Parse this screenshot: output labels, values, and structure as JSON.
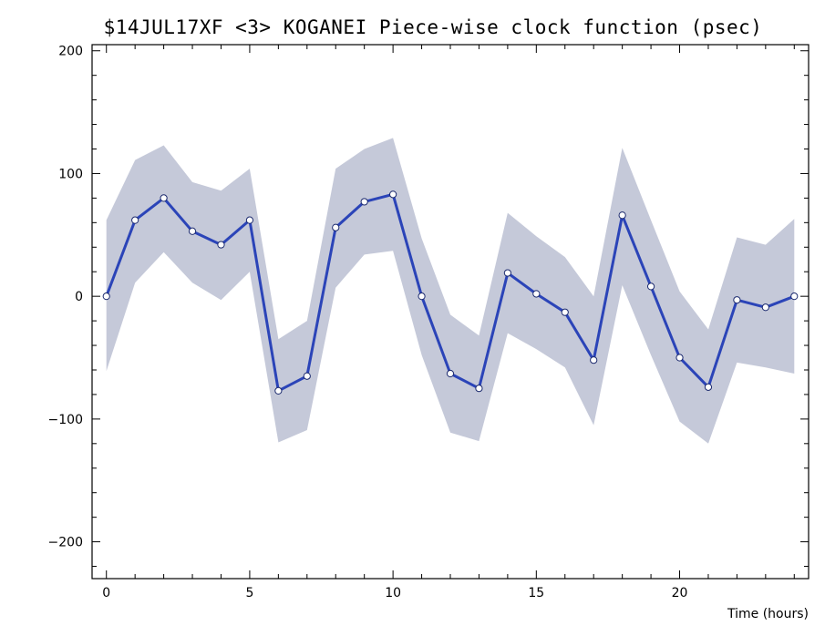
{
  "chart_data": {
    "type": "line",
    "title": "$14JUL17XF <3>  KOGANEI   Piece-wise clock function (psec)",
    "xlabel": "Time (hours)",
    "ylabel": "",
    "xlim": [
      -0.5,
      24.5
    ],
    "ylim": [
      -230,
      205
    ],
    "x_ticks": [
      0,
      5,
      10,
      15,
      20
    ],
    "y_ticks": [
      200,
      100,
      0,
      -100,
      -200
    ],
    "grid": false,
    "colors": {
      "line": "#2b44b8",
      "band": "#c5c9d9",
      "marker_fill": "#ffffff",
      "axis": "#000000"
    },
    "x": [
      0,
      1,
      2,
      3,
      4,
      5,
      6,
      7,
      8,
      9,
      10,
      11,
      12,
      13,
      14,
      15,
      16,
      17,
      18,
      19,
      20,
      21,
      22,
      23,
      24
    ],
    "series": [
      {
        "values": [
          0,
          62,
          80,
          53,
          42,
          62,
          -77,
          -65,
          56,
          77,
          83,
          0,
          -63,
          -75,
          19,
          2,
          -13,
          -52,
          66,
          8,
          -50,
          -74,
          -3,
          -9,
          0
        ]
      }
    ],
    "band_upper": [
      62,
      111,
      123,
      93,
      86,
      104,
      -35,
      -20,
      104,
      120,
      129,
      47,
      -15,
      -32,
      68,
      49,
      32,
      0,
      121,
      62,
      4,
      -27,
      48,
      42,
      63
    ],
    "band_lower": [
      -61,
      11,
      36,
      11,
      -3,
      20,
      -119,
      -109,
      7,
      34,
      37,
      -48,
      -111,
      -118,
      -30,
      -43,
      -58,
      -105,
      9,
      -48,
      -102,
      -120,
      -54,
      -58,
      -63
    ]
  }
}
